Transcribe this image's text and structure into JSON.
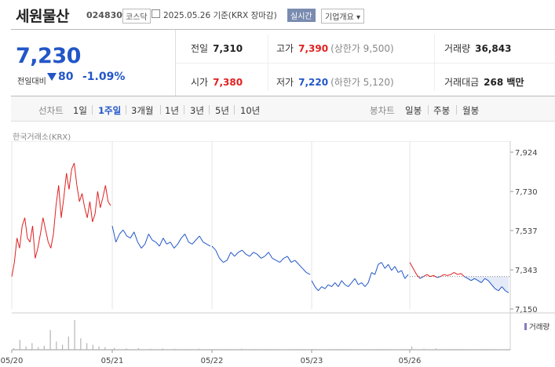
{
  "header": {
    "name": "세원물산",
    "code": "024830",
    "market": "코스닥",
    "date": "2025.05.26 기준(KRX 장마감)",
    "realtime": "실시간",
    "company_info": "기업개요"
  },
  "price": {
    "current": "7,230",
    "change_label": "전일대비",
    "change": "80",
    "change_pct": "-1.09%"
  },
  "info": {
    "prev_label": "전일",
    "prev": "7,310",
    "high_label": "고가",
    "high": "7,390",
    "upper_limit": "(상한가 9,500)",
    "volume_label": "거래량",
    "volume": "36,843",
    "open_label": "시가",
    "open": "7,380",
    "low_label": "저가",
    "low": "7,220",
    "lower_limit": "(하한가 5,120)",
    "amount_label": "거래대금",
    "amount": "268 백만"
  },
  "period_bar": {
    "line_label": "선차트",
    "periods": [
      "1일",
      "1주일",
      "3개월",
      "1년",
      "3년",
      "5년",
      "10년"
    ],
    "selected": "1주일",
    "candle_label": "봉차트",
    "candles": [
      "일봉",
      "주봉",
      "월봉"
    ]
  },
  "colors": {
    "up": "#e02020",
    "down": "#2256c8",
    "accent": "#2256c8"
  },
  "chart_data": {
    "type": "line",
    "source": "한국거래소(KRX)",
    "x_ticks": [
      "05/20",
      "05/21",
      "05/22",
      "05/23",
      "05/26"
    ],
    "y_ticks": [
      "7,924",
      "7,730",
      "7,537",
      "7,343",
      "7,150"
    ],
    "ylim": [
      7150,
      7924
    ],
    "prev_close": 7310,
    "volume_label": "거래량",
    "series": [
      {
        "day": "05/20",
        "values": [
          7310,
          7380,
          7500,
          7450,
          7560,
          7600,
          7500,
          7480,
          7560,
          7400,
          7450,
          7520,
          7600,
          7540,
          7480,
          7450,
          7520,
          7660,
          7760,
          7600,
          7700,
          7820,
          7740,
          7840,
          7870,
          7760,
          7680,
          7720,
          7650,
          7600,
          7680,
          7580,
          7620,
          7730,
          7650,
          7700,
          7760,
          7680,
          7660
        ]
      },
      {
        "day": "05/21",
        "values": [
          7560,
          7480,
          7520,
          7540,
          7510,
          7500,
          7530,
          7480,
          7450,
          7470,
          7520,
          7490,
          7480,
          7460,
          7500,
          7470,
          7480,
          7450,
          7470,
          7500,
          7520,
          7480,
          7470,
          7490,
          7510,
          7480,
          7470,
          7460
        ]
      },
      {
        "day": "05/22",
        "values": [
          7460,
          7440,
          7400,
          7380,
          7390,
          7430,
          7410,
          7430,
          7440,
          7420,
          7410,
          7430,
          7420,
          7400,
          7410,
          7430,
          7400,
          7390,
          7380,
          7400,
          7410,
          7380,
          7390,
          7370,
          7350,
          7330,
          7320
        ]
      },
      {
        "day": "05/23",
        "values": [
          7290,
          7260,
          7240,
          7260,
          7250,
          7270,
          7260,
          7280,
          7260,
          7290,
          7270,
          7260,
          7280,
          7300,
          7270,
          7280,
          7260,
          7280,
          7330,
          7320,
          7370,
          7380,
          7350,
          7370,
          7340,
          7360,
          7330,
          7340,
          7300,
          7320
        ]
      },
      {
        "day": "05/26",
        "values": [
          7380,
          7350,
          7320,
          7300,
          7310,
          7320,
          7310,
          7315,
          7305,
          7310,
          7320,
          7315,
          7320,
          7330,
          7320,
          7325,
          7310,
          7300,
          7290,
          7300,
          7290,
          7280,
          7300,
          7290,
          7270,
          7250,
          7240,
          7260,
          7240,
          7230
        ]
      }
    ],
    "volume": [
      {
        "day": "05/20",
        "values": [
          5,
          30,
          10,
          20,
          8,
          12,
          60,
          25,
          15,
          40,
          90,
          35,
          20,
          15,
          10,
          8
        ]
      },
      {
        "day": "05/21",
        "values": [
          6,
          4,
          5,
          3,
          4,
          3,
          2,
          3
        ]
      },
      {
        "day": "05/22",
        "values": [
          2,
          2,
          3,
          2,
          2,
          1,
          2
        ]
      },
      {
        "day": "05/23",
        "values": [
          2,
          1,
          2,
          1,
          1,
          2,
          1
        ]
      },
      {
        "day": "05/26",
        "values": [
          10,
          3,
          4,
          2,
          2,
          1,
          2,
          1
        ]
      }
    ]
  }
}
